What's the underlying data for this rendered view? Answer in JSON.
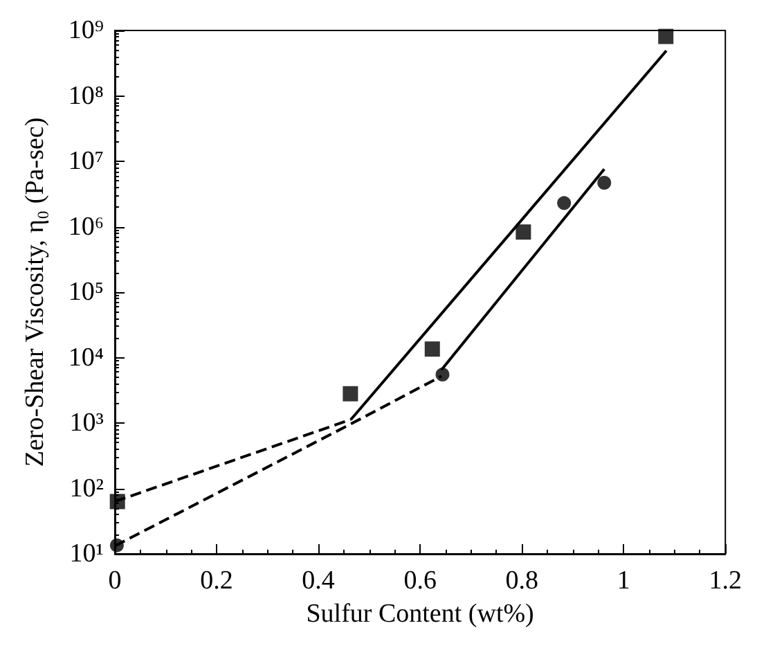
{
  "chart_data": {
    "type": "scatter",
    "xlabel": "Sulfur Content (wt%)",
    "ylabel": "Zero-Shear Viscosity, η₀ (Pa-sec)",
    "log": "y",
    "xlim": [
      0,
      1.2
    ],
    "xticks": [
      0,
      0.2,
      0.4,
      0.6,
      0.8,
      1,
      1.2
    ],
    "ylim": [
      10,
      1000000000
    ],
    "yticks": [
      {
        "value": 10,
        "label": "10¹"
      },
      {
        "value": 100,
        "label": "10²"
      },
      {
        "value": 1000,
        "label": "10³"
      },
      {
        "value": 10000,
        "label": "10⁴"
      },
      {
        "value": 100000,
        "label": "10⁵"
      },
      {
        "value": 1000000,
        "label": "10⁶"
      },
      {
        "value": 10000000,
        "label": "10⁷"
      },
      {
        "value": 100000000,
        "label": "10⁸"
      },
      {
        "value": 1000000000,
        "label": "10⁹"
      }
    ],
    "series": [
      {
        "marker": "square",
        "color": "#000000",
        "x": [
          0.005,
          0.463,
          0.624,
          0.803,
          1.083
        ],
        "values": [
          63,
          2800,
          13500,
          830000,
          810000000
        ]
      },
      {
        "marker": "circle",
        "color": "#000000",
        "x": [
          0.004,
          0.644,
          0.883,
          0.962
        ],
        "values": [
          13.5,
          5500,
          2300000,
          4700000
        ]
      },
      {
        "type": "line",
        "marker": "none",
        "line_style": "dashed",
        "color": "#000000",
        "x": [
          0,
          0.464
        ],
        "values": [
          63,
          1130
        ]
      },
      {
        "type": "line",
        "marker": "none",
        "line_style": "solid",
        "color": "#000000",
        "x": [
          0.464,
          1.084
        ],
        "values": [
          1130,
          490000000
        ]
      },
      {
        "type": "line",
        "marker": "none",
        "line_style": "dashed",
        "color": "#000000",
        "x": [
          0,
          0.462,
          0.642
        ],
        "values": [
          13.2,
          950,
          5200
        ]
      },
      {
        "type": "line",
        "marker": "none",
        "line_style": "solid",
        "color": "#000000",
        "x": [
          0.642,
          0.962
        ],
        "values": [
          6500,
          7600000
        ]
      }
    ]
  }
}
